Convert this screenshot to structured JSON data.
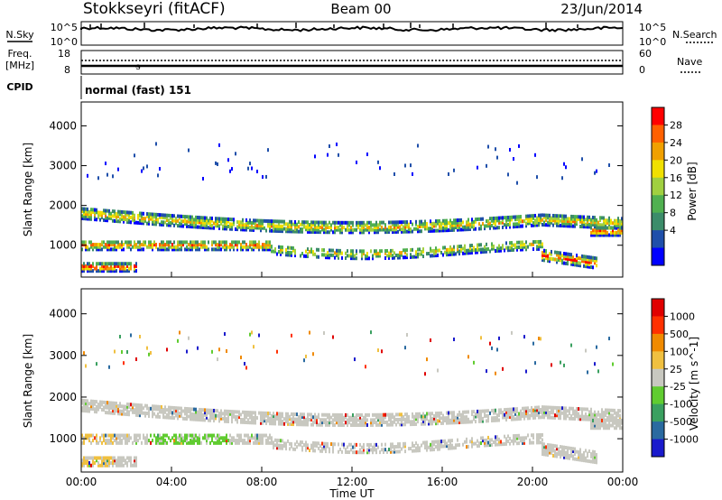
{
  "header": {
    "station": "Stokkseyri (fitACF)",
    "beam": "Beam 00",
    "date": "23/Jun/2014"
  },
  "strips": {
    "nsky_label": "N.Sky",
    "nsky_ticks": [
      "10^5",
      "10^0"
    ],
    "nsearch_label": "N.Search",
    "nsearch_ticks": [
      "10^5",
      "10^0"
    ],
    "freq_label": "Freq.",
    "freq_unit": "[MHz]",
    "freq_ticks": [
      "18",
      "8"
    ],
    "nave_label": "Nave",
    "nave_ticks": [
      "60",
      "0"
    ],
    "cpid_label": "CPID",
    "cpid_value": "normal (fast) 151"
  },
  "chart_data": [
    {
      "type": "heatmap",
      "name": "power",
      "ylabel": "Slant Range [km]",
      "yticks": [
        1000,
        2000,
        3000,
        4000
      ],
      "ylim": [
        200,
        4600
      ],
      "colorbar_label": "Power [dB]",
      "colorbar_ticks": [
        "28",
        "24",
        "20",
        "16",
        "12",
        "8",
        "4"
      ],
      "colors": [
        "#0000ff",
        "#1f4faa",
        "#3c8c6a",
        "#50b050",
        "#a0d040",
        "#f0e000",
        "#f0a000",
        "#ff6000",
        "#ff0000"
      ]
    },
    {
      "type": "heatmap",
      "name": "velocity",
      "xlabel": "Time UT",
      "ylabel": "Slant Range [km]",
      "xticks": [
        "00:00",
        "04:00",
        "08:00",
        "12:00",
        "16:00",
        "20:00",
        "00:00"
      ],
      "yticks": [
        1000,
        2000,
        3000,
        4000
      ],
      "ylim": [
        200,
        4600
      ],
      "colorbar_label": "Velocity [m s^-1]",
      "colorbar_ticks": [
        "1000",
        "500",
        "100",
        "25",
        "-25",
        "-100",
        "-500",
        "-1000"
      ],
      "colors": [
        "#1a1acc",
        "#2a6aa0",
        "#3aa060",
        "#60cc30",
        "#c8c8c0",
        "#f0c040",
        "#f08a00",
        "#ff3000",
        "#e00000"
      ]
    }
  ]
}
